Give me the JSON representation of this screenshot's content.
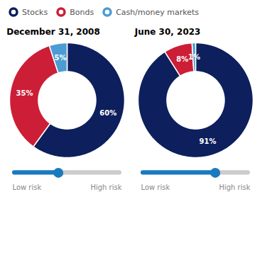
{
  "chart_data": [
    {
      "type": "pie",
      "title": "December 31, 2008",
      "categories": [
        "Stocks",
        "Bonds",
        "Cash/money markets"
      ],
      "values": [
        60,
        35,
        5
      ],
      "value_labels": [
        "60%",
        "35%",
        "5%"
      ],
      "colors": [
        "#0d1f5c",
        "#cc1e36",
        "#4b9cd3"
      ],
      "data_labels": true,
      "legend": "top",
      "slider": 0.42,
      "slider_lim": [
        0,
        1
      ],
      "slider_labels": [
        "Low risk",
        "High risk"
      ],
      "slider_colors": [
        "#1a7abf",
        "#cccccc"
      ]
    },
    {
      "type": "pie",
      "title": "June 30, 2023",
      "categories": [
        "Stocks",
        "Bonds",
        "Cash/money markets"
      ],
      "values": [
        91,
        8,
        1
      ],
      "value_labels": [
        "91%",
        "8%",
        "1%"
      ],
      "colors": [
        "#0d1f5c",
        "#cc1e36",
        "#4b9cd3"
      ],
      "data_labels": true,
      "legend": "top",
      "slider": 0.68,
      "slider_lim": [
        0,
        1
      ],
      "slider_labels": [
        "Low risk",
        "High risk"
      ],
      "slider_colors": [
        "#1a7abf",
        "#cccccc"
      ]
    }
  ]
}
